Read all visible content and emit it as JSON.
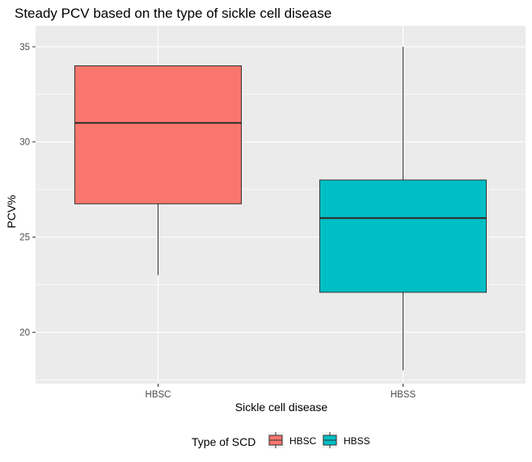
{
  "chart_data": {
    "type": "boxplot",
    "title": "Steady PCV based on the type of sickle cell disease",
    "xlabel": "Sickle cell disease",
    "ylabel": "PCV%",
    "ylim": [
      17.3,
      36.1
    ],
    "yticks": [
      20,
      25,
      30,
      35
    ],
    "grid": true,
    "legend": {
      "title": "Type of SCD",
      "position": "bottom",
      "entries": [
        "HBSC",
        "HBSS"
      ]
    },
    "categories": [
      "HBSC",
      "HBSS"
    ],
    "boxes": [
      {
        "name": "HBSC",
        "color": "#F8766D",
        "min": 23,
        "q1": 26.75,
        "median": 31,
        "q3": 34,
        "max": 34
      },
      {
        "name": "HBSS",
        "color": "#00BFC4",
        "min": 18,
        "q1": 22.1,
        "median": 26,
        "q3": 28,
        "max": 35
      }
    ]
  }
}
